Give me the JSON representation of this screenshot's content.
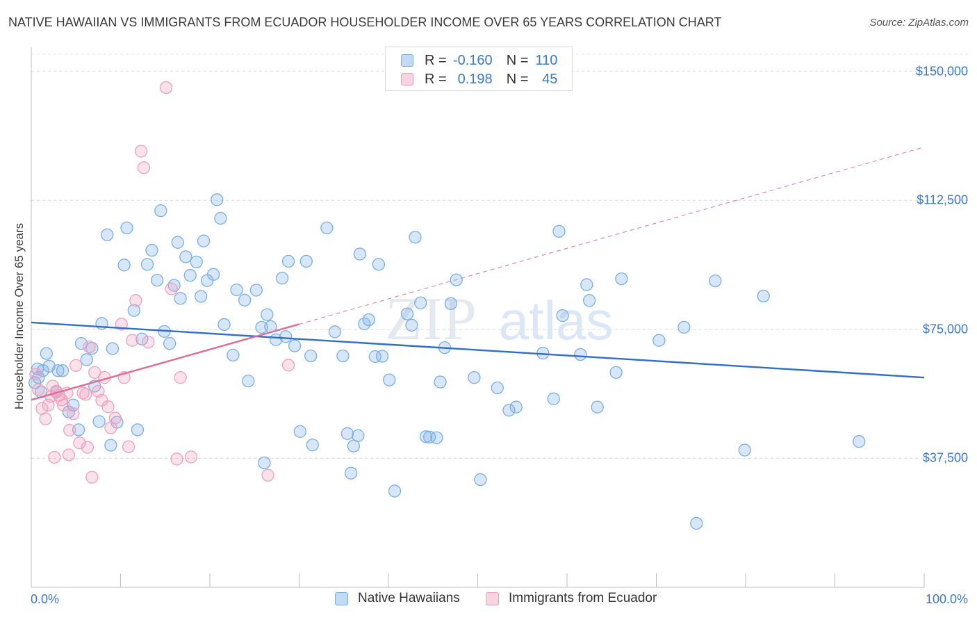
{
  "chart_data": {
    "type": "scatter",
    "title": "NATIVE HAWAIIAN VS IMMIGRANTS FROM ECUADOR HOUSEHOLDER INCOME OVER 65 YEARS CORRELATION CHART",
    "source": "Source: ZipAtlas.com",
    "watermark": "ZIPatlas",
    "ylabel": "Householder Income Over 65 years",
    "xlim": [
      0,
      100
    ],
    "ylim": [
      0,
      155000
    ],
    "x_tick_labels": [
      "0.0%",
      "100.0%"
    ],
    "y_ticks": [
      {
        "value": 37500,
        "label": "$37,500"
      },
      {
        "value": 75000,
        "label": "$75,000"
      },
      {
        "value": 112500,
        "label": "$112,500"
      },
      {
        "value": 150000,
        "label": "$150,000"
      }
    ],
    "grid": "horizontal dashed",
    "legend": [
      {
        "r_label": "R =",
        "r_value": "-0.160",
        "n_label": "N =",
        "n_value": "110"
      },
      {
        "r_label": "R =",
        "r_value": "0.198",
        "n_label": "N =",
        "n_value": "45"
      }
    ],
    "series": [
      {
        "name": "Native Hawaiians",
        "color": "#7aaee6",
        "fill": "rgba(122,174,230,0.30)",
        "line_color": "#2f6fc9",
        "trend": {
          "x": [
            0,
            100
          ],
          "y": [
            77000,
            61000
          ]
        },
        "points": [
          [
            0.4,
            59.5
          ],
          [
            0.7,
            63.5
          ],
          [
            0.8,
            61
          ],
          [
            1.1,
            56.8
          ],
          [
            1.3,
            63
          ],
          [
            1.7,
            68
          ],
          [
            2.0,
            64.3
          ],
          [
            2.8,
            56.8
          ],
          [
            3.0,
            63
          ],
          [
            3.5,
            63
          ],
          [
            4.2,
            51
          ],
          [
            4.7,
            53
          ],
          [
            5.3,
            45.8
          ],
          [
            5.6,
            70.9
          ],
          [
            6.2,
            66.2
          ],
          [
            6.8,
            69.5
          ],
          [
            7.1,
            58.5
          ],
          [
            7.6,
            48.2
          ],
          [
            7.9,
            76.7
          ],
          [
            8.5,
            102.5
          ],
          [
            8.9,
            41.3
          ],
          [
            9.1,
            69.4
          ],
          [
            9.6,
            48
          ],
          [
            10.4,
            93.7
          ],
          [
            10.7,
            104.5
          ],
          [
            11.5,
            80.5
          ],
          [
            11.9,
            45.8
          ],
          [
            12.4,
            72.2
          ],
          [
            13.0,
            93.9
          ],
          [
            13.5,
            98
          ],
          [
            14.1,
            89.3
          ],
          [
            14.5,
            109.5
          ],
          [
            14.9,
            74.4
          ],
          [
            15.5,
            70.9
          ],
          [
            16.0,
            87.8
          ],
          [
            16.4,
            100.3
          ],
          [
            16.7,
            84
          ],
          [
            17.3,
            96.1
          ],
          [
            17.8,
            90.7
          ],
          [
            18.5,
            94.6
          ],
          [
            19.0,
            84.6
          ],
          [
            19.3,
            100.7
          ],
          [
            19.7,
            89.2
          ],
          [
            20.4,
            91
          ],
          [
            20.8,
            112.7
          ],
          [
            21.2,
            107.3
          ],
          [
            21.6,
            76.4
          ],
          [
            22.6,
            67.5
          ],
          [
            23.0,
            86.5
          ],
          [
            23.9,
            83.5
          ],
          [
            24.3,
            60
          ],
          [
            25.2,
            86.4
          ],
          [
            25.8,
            75.6
          ],
          [
            26.1,
            36.2
          ],
          [
            26.4,
            79.3
          ],
          [
            26.8,
            75.8
          ],
          [
            27.4,
            72
          ],
          [
            28.1,
            89.9
          ],
          [
            28.5,
            72.9
          ],
          [
            28.8,
            94.8
          ],
          [
            29.5,
            70.2
          ],
          [
            30.1,
            45.3
          ],
          [
            30.8,
            94.8
          ],
          [
            31.3,
            67.3
          ],
          [
            31.5,
            41.4
          ],
          [
            33.1,
            104.5
          ],
          [
            34.0,
            74.3
          ],
          [
            34.9,
            67.3
          ],
          [
            35.4,
            44.7
          ],
          [
            35.8,
            33.2
          ],
          [
            36.1,
            41.1
          ],
          [
            36.6,
            44.1
          ],
          [
            36.8,
            96.9
          ],
          [
            37.3,
            76.6
          ],
          [
            37.8,
            77.8
          ],
          [
            38.5,
            67.1
          ],
          [
            38.9,
            93.9
          ],
          [
            39.3,
            67.2
          ],
          [
            40.1,
            60.3
          ],
          [
            40.7,
            28
          ],
          [
            42.1,
            79.5
          ],
          [
            42.6,
            76.2
          ],
          [
            43.0,
            101.8
          ],
          [
            43.6,
            82.7
          ],
          [
            44.2,
            43.8
          ],
          [
            44.6,
            43.7
          ],
          [
            45.4,
            43.5
          ],
          [
            45.8,
            59.7
          ],
          [
            46.3,
            69.7
          ],
          [
            47.0,
            82.5
          ],
          [
            47.6,
            89.4
          ],
          [
            49.6,
            61
          ],
          [
            50.3,
            31.3
          ],
          [
            52.2,
            58
          ],
          [
            53.5,
            51.5
          ],
          [
            54.3,
            52.4
          ],
          [
            57.3,
            68.1
          ],
          [
            58.5,
            54.8
          ],
          [
            59.1,
            103.5
          ],
          [
            59.5,
            79
          ],
          [
            61.5,
            67.7
          ],
          [
            62.2,
            88
          ],
          [
            62.5,
            83.4
          ],
          [
            63.4,
            52.4
          ],
          [
            65.5,
            62.5
          ],
          [
            66.1,
            89.7
          ],
          [
            70.3,
            71.8
          ],
          [
            73.1,
            75.6
          ],
          [
            74.5,
            18.6
          ],
          [
            76.6,
            89.1
          ],
          [
            79.9,
            39.9
          ],
          [
            82.0,
            84.7
          ],
          [
            92.7,
            42.4
          ]
        ]
      },
      {
        "name": "Immigrants from Ecuador",
        "color": "#f0a0bc",
        "fill": "rgba(240,160,188,0.30)",
        "line_color": "#e06b96",
        "trend": {
          "x": [
            0,
            30
          ],
          "y": [
            54500,
            76500
          ]
        },
        "trend_extension": {
          "x": [
            30,
            100
          ],
          "y": [
            76500,
            128000
          ]
        },
        "points": [
          [
            0.5,
            62
          ],
          [
            0.8,
            57.5
          ],
          [
            1.2,
            52
          ],
          [
            1.6,
            49
          ],
          [
            1.9,
            53
          ],
          [
            2.2,
            55.5
          ],
          [
            2.4,
            58.5
          ],
          [
            2.8,
            57
          ],
          [
            3.1,
            55.8
          ],
          [
            3.4,
            54.5
          ],
          [
            3.6,
            53
          ],
          [
            4.0,
            56.5
          ],
          [
            4.3,
            45.7
          ],
          [
            4.7,
            50.5
          ],
          [
            5.0,
            64.5
          ],
          [
            5.4,
            42
          ],
          [
            5.8,
            56.5
          ],
          [
            6.3,
            40.7
          ],
          [
            6.5,
            69.9
          ],
          [
            6.8,
            32
          ],
          [
            7.1,
            62.5
          ],
          [
            7.5,
            57
          ],
          [
            7.9,
            54.4
          ],
          [
            8.2,
            61
          ],
          [
            8.6,
            52.5
          ],
          [
            8.9,
            46.4
          ],
          [
            9.4,
            49.2
          ],
          [
            10.1,
            76.5
          ],
          [
            10.4,
            61
          ],
          [
            10.9,
            40.9
          ],
          [
            11.3,
            71.8
          ],
          [
            11.7,
            83.4
          ],
          [
            12.3,
            126.8
          ],
          [
            12.6,
            122
          ],
          [
            13.1,
            71.3
          ],
          [
            15.1,
            145.3
          ],
          [
            15.7,
            86.8
          ],
          [
            16.3,
            37.3
          ],
          [
            16.7,
            61
          ],
          [
            17.9,
            37.9
          ],
          [
            26.5,
            32.6
          ],
          [
            28.8,
            64.6
          ],
          [
            4.2,
            38.5
          ],
          [
            6.1,
            56.1
          ],
          [
            2.6,
            37.8
          ]
        ]
      }
    ]
  }
}
